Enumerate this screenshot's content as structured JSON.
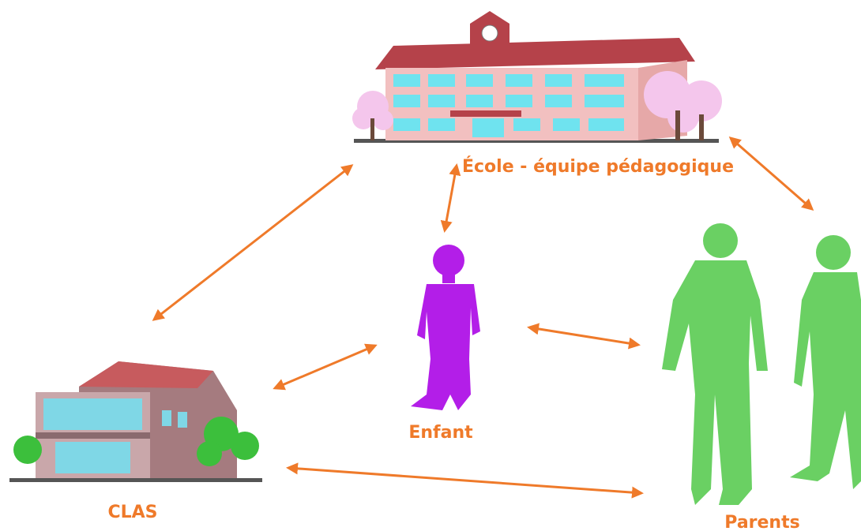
{
  "nodes": [
    {
      "label": "École - équipe pédagogique"
    },
    {
      "label": "Enfant"
    },
    {
      "label": "CLAS"
    },
    {
      "label": "Parents"
    }
  ]
}
